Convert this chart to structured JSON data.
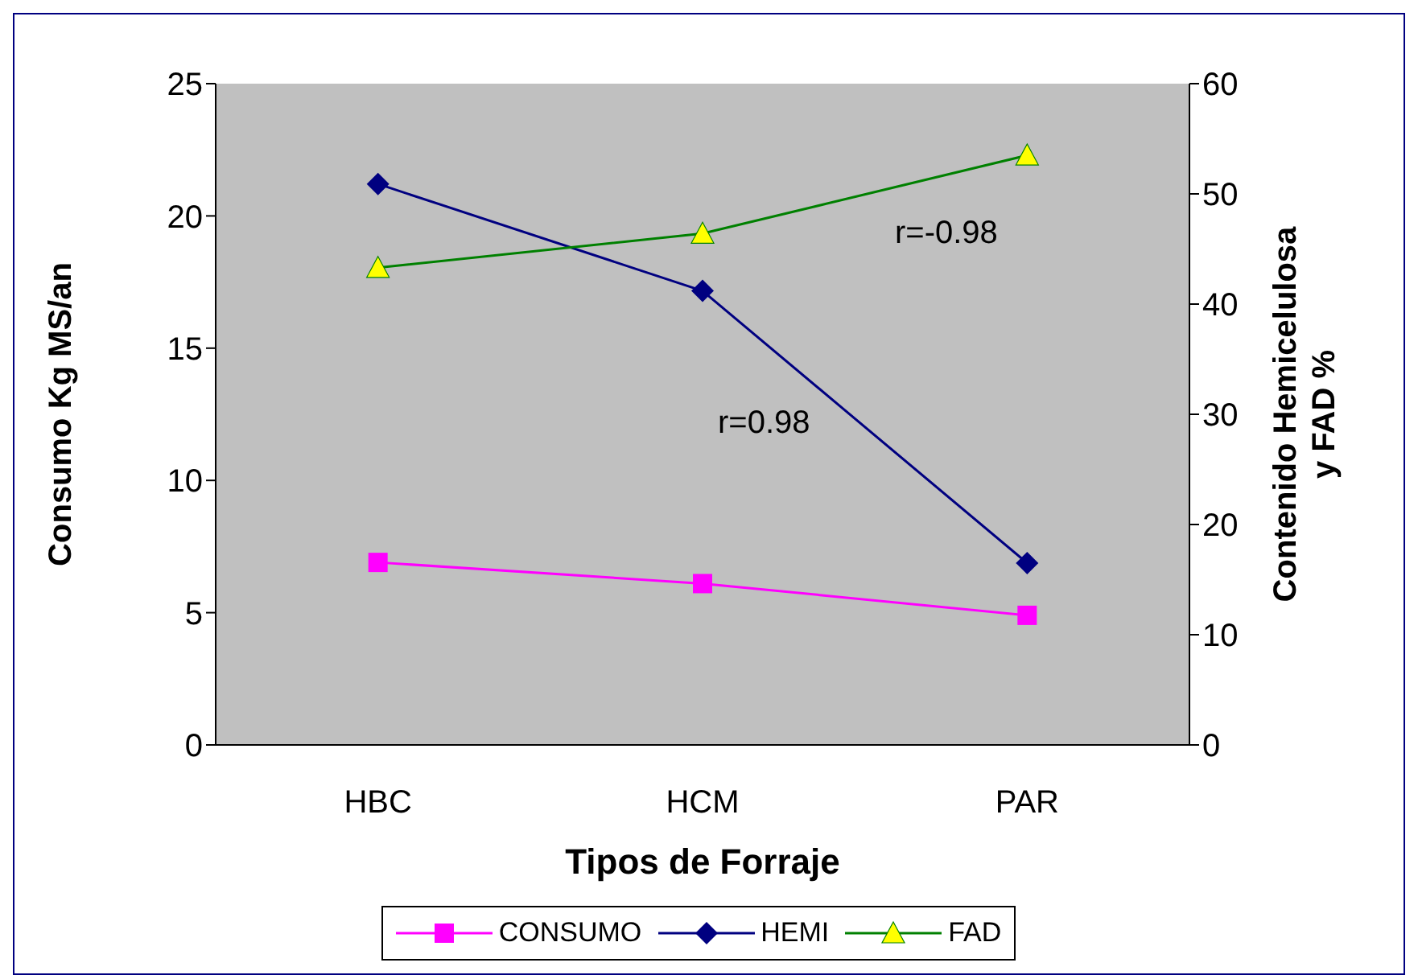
{
  "chart_data": {
    "type": "line",
    "xlabel": "Tipos de Forraje",
    "ylabel": "Consumo Kg MS/an",
    "y2label": "Contenido Hemicelulosa y FAD %",
    "categories": [
      "HBC",
      "HCM",
      "PAR"
    ],
    "series": [
      {
        "name": "CONSUMO",
        "color": "#ff00ff",
        "marker": "square",
        "values": [
          6.9,
          6.1,
          4.9
        ]
      },
      {
        "name": "HEMI",
        "color": "#000080",
        "marker": "diamond",
        "axis": "y2",
        "values": [
          50.9,
          41.2,
          16.5
        ]
      },
      {
        "name": "FAD",
        "color": "#008000",
        "marker": "triangle",
        "axis": "y2",
        "values": [
          43.3,
          46.4,
          53.5
        ]
      }
    ],
    "ylim": [
      0,
      25
    ],
    "yticks": [
      0,
      5,
      10,
      15,
      20,
      25
    ],
    "y2lim": [
      0,
      60
    ],
    "y2ticks": [
      0,
      10,
      20,
      30,
      40,
      50,
      60
    ],
    "annotations": [
      "r=-0.98",
      "r=0.98"
    ],
    "grid": false,
    "legend": "bottom"
  }
}
